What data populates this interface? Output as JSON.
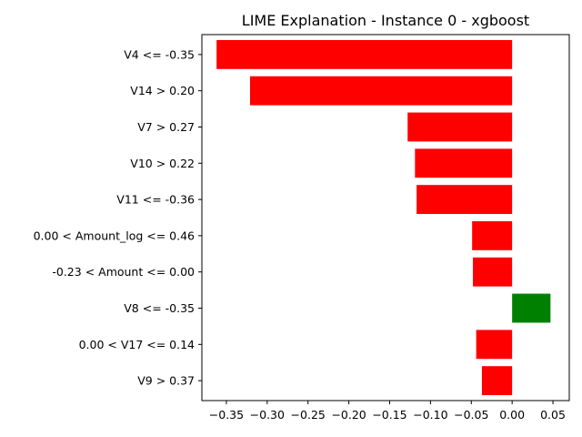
{
  "chart_data": {
    "type": "bar",
    "orientation": "horizontal",
    "title": "LIME Explanation - Instance 0 - xgboost",
    "xlabel": "",
    "ylabel": "",
    "xlim": [
      -0.38,
      0.07
    ],
    "xticks": [
      -0.35,
      -0.3,
      -0.25,
      -0.2,
      -0.15,
      -0.1,
      -0.05,
      0.0,
      0.05
    ],
    "xtick_labels": [
      "−0.35",
      "−0.30",
      "−0.25",
      "−0.20",
      "−0.15",
      "−0.10",
      "−0.05",
      "0.00",
      "0.05"
    ],
    "categories": [
      "V4 <= -0.35",
      "V14 > 0.20",
      "V7 > 0.27",
      "V10 > 0.22",
      "V11 <= -0.36",
      "0.00 < Amount_log <= 0.46",
      "-0.23 < Amount <= 0.00",
      "V8 <= -0.35",
      "0.00 < V17 <= 0.14",
      "V9 > 0.37"
    ],
    "values": [
      -0.362,
      -0.321,
      -0.128,
      -0.119,
      -0.117,
      -0.049,
      -0.048,
      0.047,
      -0.044,
      -0.037
    ],
    "colors": {
      "positive": "#008000",
      "negative": "#ff0000"
    },
    "grid": false,
    "legend": "none"
  }
}
